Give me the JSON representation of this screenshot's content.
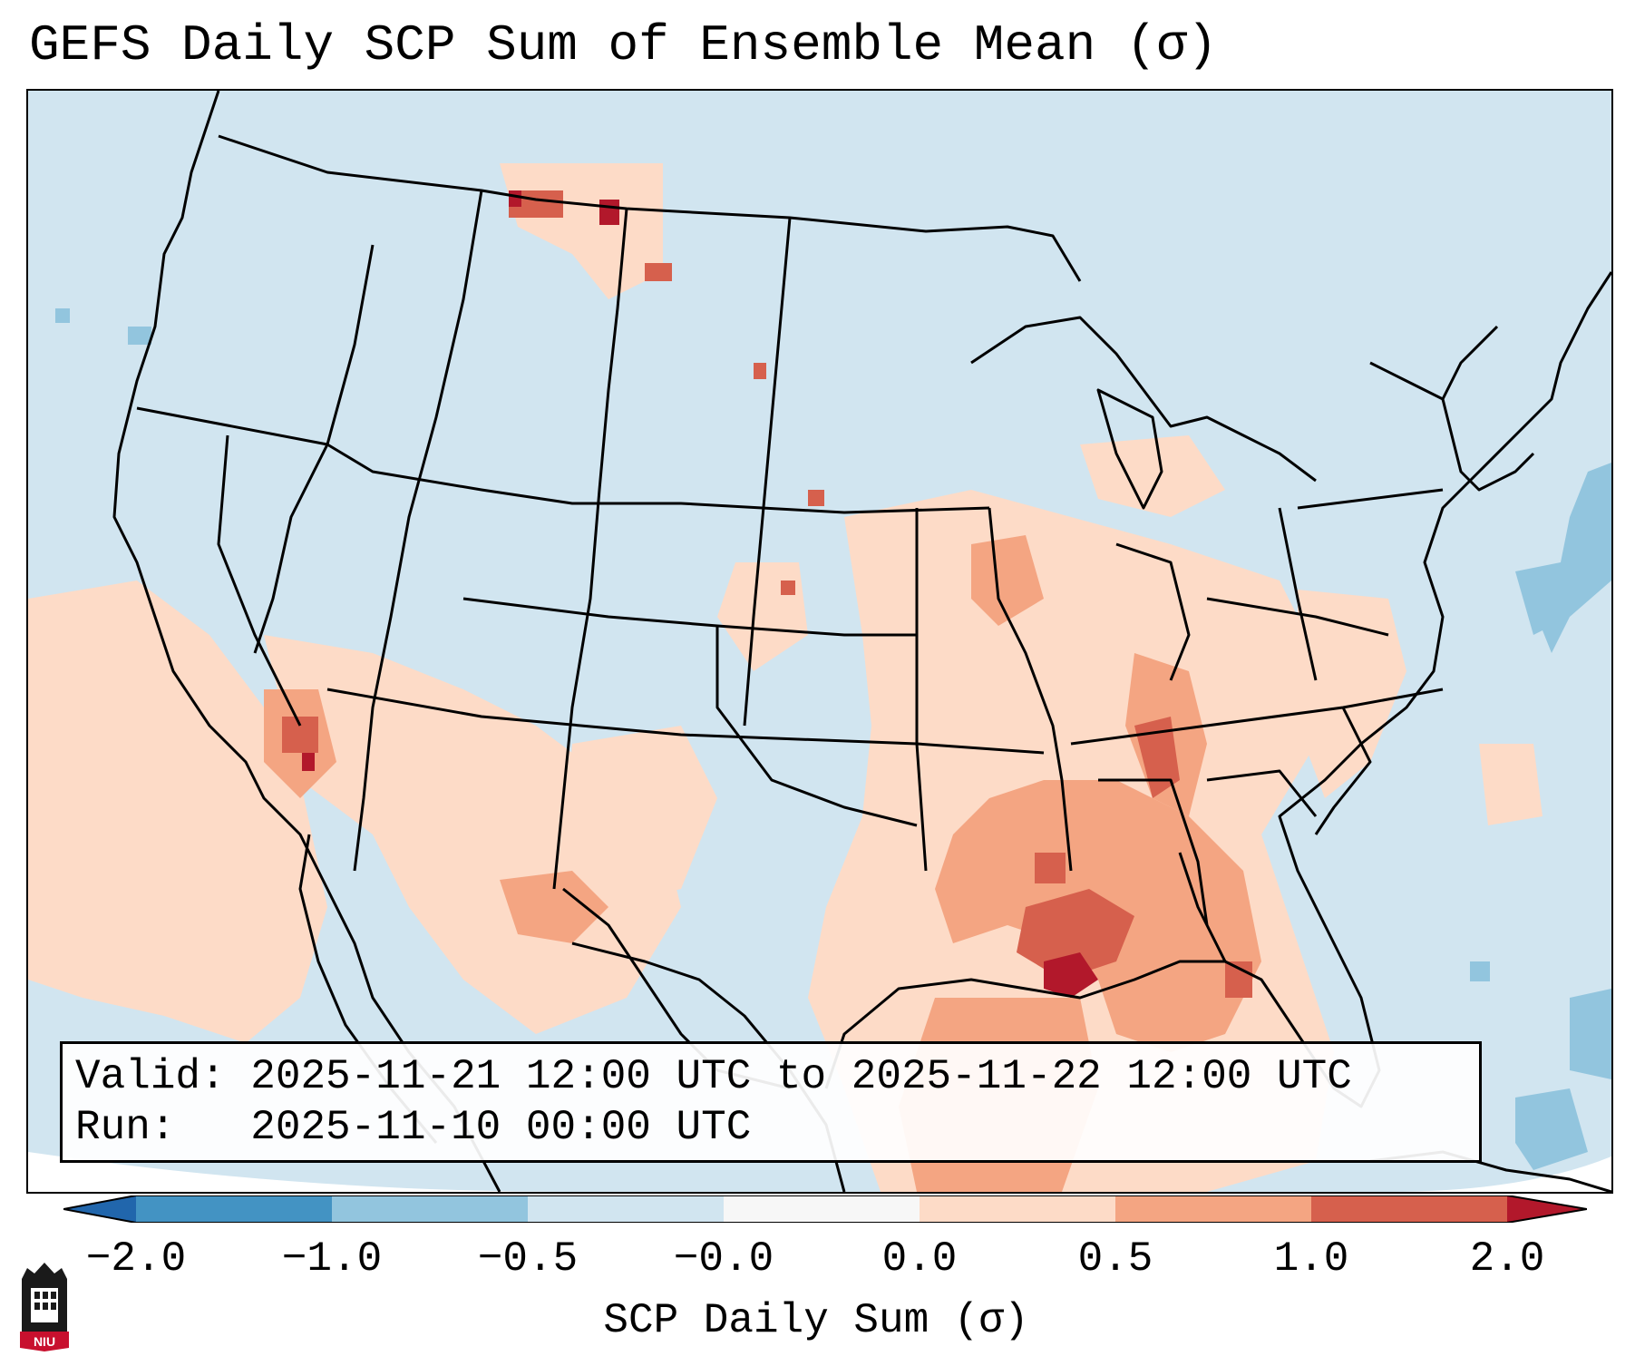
{
  "title": "GEFS Daily SCP Sum of Ensemble Mean (σ)",
  "info": {
    "valid_line": "Valid: 2025-11-21 12:00 UTC to 2025-11-22 12:00 UTC",
    "run_line": "Run:   2025-11-10 00:00 UTC"
  },
  "colorbar": {
    "label": "SCP Daily Sum (σ)",
    "ticks": [
      "−2.0",
      "−1.0",
      "−0.5",
      "−0.0",
      "0.0",
      "0.5",
      "1.0",
      "2.0"
    ],
    "colors": [
      "#4393c3",
      "#92c5de",
      "#d1e5f0",
      "#f7f7f7",
      "#fddbc7",
      "#f4a582",
      "#d6604d",
      "#b2182b"
    ],
    "extend_low_color": "#2166ac",
    "extend_high_color": "#b2182b"
  },
  "map": {
    "ocean_color": "#d1e5f0",
    "line_color": "#000000"
  },
  "logo": {
    "text": "NIU"
  }
}
